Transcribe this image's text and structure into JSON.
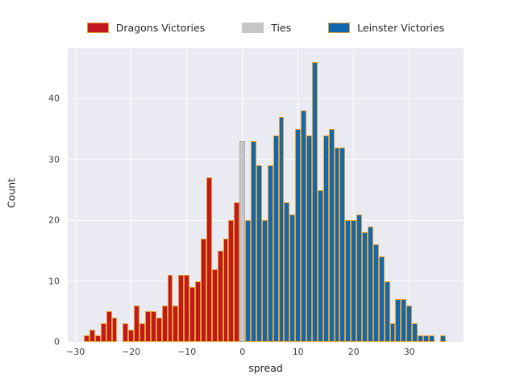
{
  "figure": {
    "xlabel": "spread",
    "ylabel": "Count"
  },
  "legend": [
    {
      "label": "Dragons Victories",
      "color": "#c0181e",
      "edge": "#e5a02d"
    },
    {
      "label": "Ties",
      "color": "#c6c6c6",
      "edge": "#c6c6c6"
    },
    {
      "label": "Leinster Victories",
      "color": "#1268b0",
      "edge": "#e5a02d"
    }
  ],
  "axes": {
    "x_ticks": [
      {
        "label": "−30",
        "value": -30
      },
      {
        "label": "−20",
        "value": -20
      },
      {
        "label": "−10",
        "value": -10
      },
      {
        "label": "0",
        "value": 0
      },
      {
        "label": "10",
        "value": 10
      },
      {
        "label": "20",
        "value": 20
      },
      {
        "label": "30",
        "value": 30
      }
    ],
    "y_ticks": [
      {
        "label": "0",
        "value": 0
      },
      {
        "label": "10",
        "value": 10
      },
      {
        "label": "20",
        "value": 20
      },
      {
        "label": "30",
        "value": 30
      },
      {
        "label": "40",
        "value": 40
      }
    ]
  },
  "chart_data": {
    "type": "bar",
    "subtype": "histogram",
    "title": "",
    "xlabel": "spread",
    "ylabel": "Count",
    "xlim": [
      -31.4,
      39.7
    ],
    "ylim": [
      0,
      48.3
    ],
    "grid": true,
    "legend_position": "top",
    "plot_background": "#eaeaf2",
    "grid_color": "#ffffff",
    "bar_edge_color": "#e5a02d",
    "series": [
      {
        "name": "Dragons Victories",
        "color": "#c0181e",
        "edge": "#e5a02d",
        "x": [
          -28,
          -27,
          -26,
          -25,
          -24,
          -23,
          -22,
          -21,
          -20,
          -19,
          -18,
          -17,
          -16,
          -15,
          -14,
          -13,
          -12,
          -11,
          -10,
          -9,
          -8,
          -7,
          -6,
          -5,
          -4,
          -3,
          -2,
          -1
        ],
        "counts": [
          1,
          2,
          1,
          3,
          5,
          4,
          0,
          3,
          2,
          6,
          3,
          5,
          5,
          4,
          6,
          11,
          6,
          11,
          11,
          9,
          10,
          17,
          27,
          12,
          15,
          17,
          20,
          23
        ]
      },
      {
        "name": "Ties",
        "color": "#c6c6c6",
        "edge": "#adadad",
        "x": [
          0
        ],
        "counts": [
          33
        ]
      },
      {
        "name": "Leinster Victories",
        "color": "#1268b0",
        "edge": "#e5a02d",
        "x": [
          1,
          2,
          3,
          4,
          5,
          6,
          7,
          8,
          9,
          10,
          11,
          12,
          13,
          14,
          15,
          16,
          17,
          18,
          19,
          20,
          21,
          22,
          23,
          24,
          25,
          26,
          27,
          28,
          29,
          30,
          31,
          32,
          33,
          34,
          35,
          36
        ],
        "counts": [
          20,
          33,
          29,
          20,
          29,
          34,
          37,
          23,
          21,
          35,
          38,
          34,
          46,
          25,
          34,
          35,
          32,
          32,
          20,
          20,
          21,
          18,
          19,
          16,
          14,
          10,
          3,
          7,
          7,
          6,
          3,
          1,
          1,
          1,
          0,
          1
        ]
      }
    ]
  }
}
